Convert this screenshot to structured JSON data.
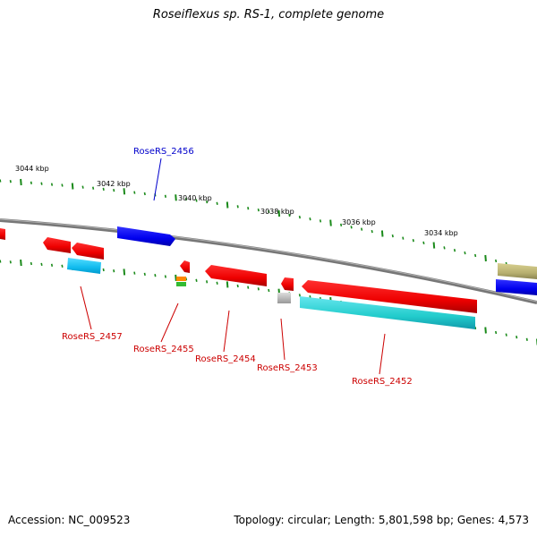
{
  "title": "Roseiflexus sp. RS-1, complete genome",
  "footer": {
    "accession": "Accession: NC_009523",
    "summary": "Topology: circular; Length: 5,801,598 bp; Genes: 4,573"
  },
  "scale_labels": [
    "3044 kbp",
    "3042 kbp",
    "3040 kbp",
    "3038 kbp",
    "3036 kbp",
    "3034 kbp"
  ],
  "gene_labels": [
    {
      "name": "RoseRS_2456",
      "color": "#0000cc"
    },
    {
      "name": "RoseRS_2457",
      "color": "#cc0000"
    },
    {
      "name": "RoseRS_2455",
      "color": "#cc0000"
    },
    {
      "name": "RoseRS_2454",
      "color": "#cc0000"
    },
    {
      "name": "RoseRS_2453",
      "color": "#cc0000"
    },
    {
      "name": "RoseRS_2452",
      "color": "#cc0000"
    }
  ],
  "colors": {
    "cds": "#ff0000",
    "cds_minus": "#0000ee",
    "rna": "#33ccdd",
    "backbone": "#808080",
    "tick": "#1a8a1a",
    "gene_misc": "#b8b070"
  }
}
